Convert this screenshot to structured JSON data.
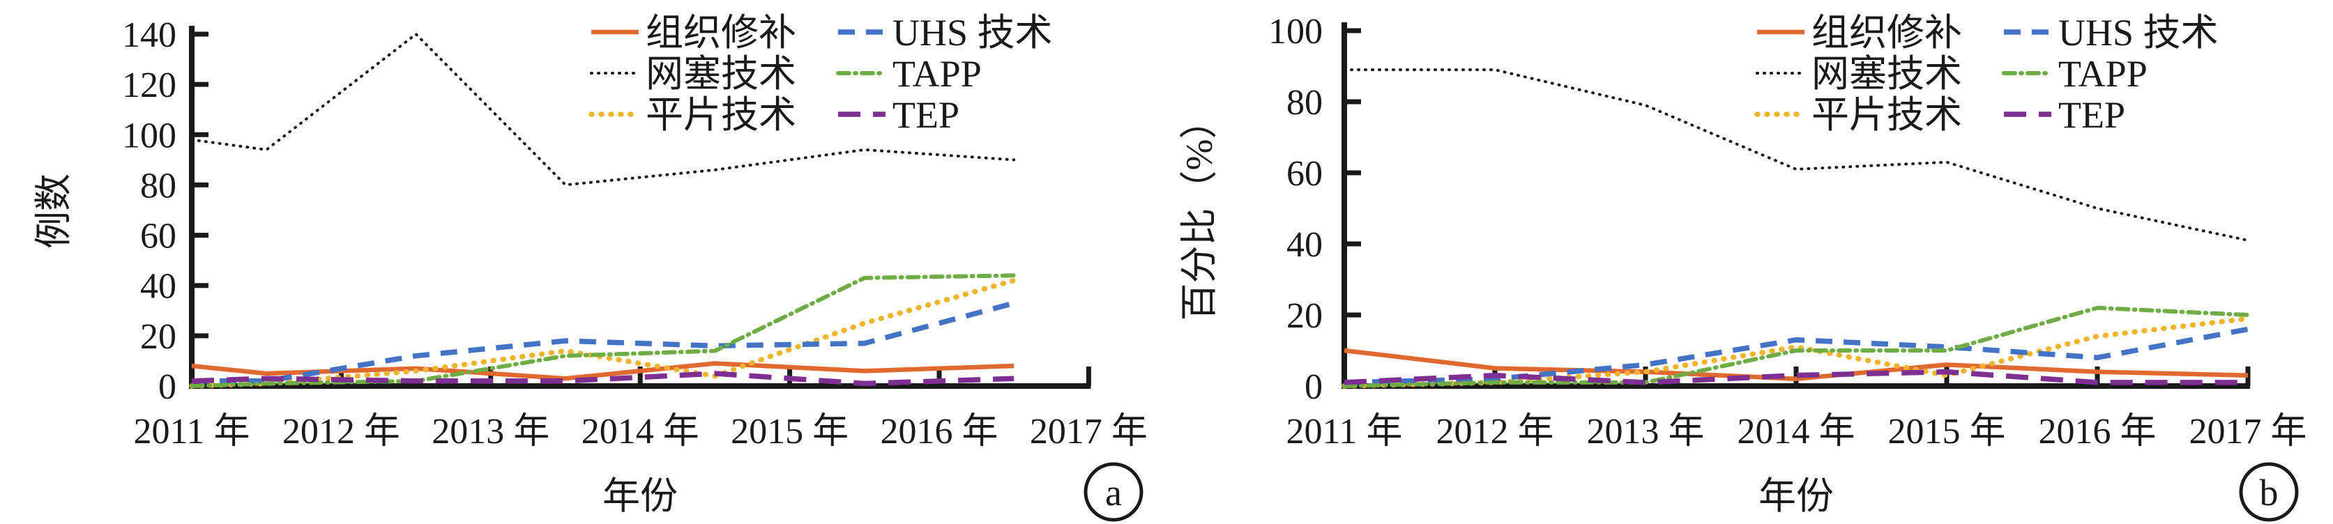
{
  "figure": {
    "background": "#ffffff",
    "axis_color": "#1a1a1a",
    "panel_labels": [
      "a",
      "b"
    ]
  },
  "chart_data": [
    {
      "type": "line",
      "panel": "a",
      "ylabel": "例数",
      "xlabel": "年份",
      "x_tick_labels": [
        "2011 年",
        "2012 年",
        "2013 年",
        "2014 年",
        "2015 年",
        "2016 年",
        "2017 年"
      ],
      "years": [
        2011,
        2012,
        2013,
        2014,
        2015,
        2016,
        2017
      ],
      "x_plot_positions": [
        2011,
        2011.5,
        2012.5,
        2013.5,
        2014.5,
        2015.5,
        2016.5
      ],
      "ylim": [
        0,
        140
      ],
      "yticks": [
        0,
        20,
        40,
        60,
        80,
        100,
        120,
        140
      ],
      "grid": false,
      "legend_position": "top-right-inside",
      "series": [
        {
          "key": "tissue-repair",
          "name": "组织修补",
          "color": "#E0692F",
          "style": "solid",
          "values": [
            8,
            5,
            7,
            3,
            9,
            6,
            8
          ]
        },
        {
          "key": "mesh-plug",
          "name": "网塞技术",
          "color": "#1a1a1a",
          "style": "dot-fine",
          "values": [
            98,
            94,
            140,
            80,
            86,
            94,
            90
          ]
        },
        {
          "key": "flat-mesh",
          "name": "平片技术",
          "color": "#F0B32E",
          "style": "dot-round",
          "values": [
            0,
            1,
            6,
            14,
            4,
            25,
            42
          ]
        },
        {
          "key": "uhs",
          "name": "UHS 技术",
          "color": "#4472C4",
          "style": "dash",
          "values": [
            2,
            2,
            12,
            18,
            16,
            17,
            33
          ]
        },
        {
          "key": "tapp",
          "name": "TAPP",
          "color": "#6FAC46",
          "style": "dash-dot",
          "values": [
            0,
            1,
            2,
            12,
            14,
            43,
            44
          ]
        },
        {
          "key": "tep",
          "name": "TEP",
          "color": "#7D2F92",
          "style": "long-dash",
          "values": [
            2,
            3,
            2,
            2,
            5,
            1,
            3
          ]
        }
      ]
    },
    {
      "type": "line",
      "panel": "b",
      "ylabel": "百分比（%）",
      "xlabel": "年份",
      "x_tick_labels": [
        "2011 年",
        "2012 年",
        "2013 年",
        "2014 年",
        "2015 年",
        "2016 年",
        "2017 年"
      ],
      "years": [
        2011,
        2012,
        2013,
        2014,
        2015,
        2016,
        2017
      ],
      "x_plot_positions": [
        2011,
        2012,
        2013,
        2014,
        2015,
        2016,
        2017
      ],
      "ylim": [
        0,
        100
      ],
      "yticks": [
        0,
        20,
        40,
        60,
        80,
        100
      ],
      "grid": false,
      "legend_position": "top-right-inside",
      "series": [
        {
          "key": "tissue-repair",
          "name": "组织修补",
          "color": "#E0692F",
          "style": "solid",
          "values": [
            10,
            5,
            4,
            2,
            6,
            4,
            3
          ]
        },
        {
          "key": "mesh-plug",
          "name": "网塞技术",
          "color": "#1a1a1a",
          "style": "dot-fine",
          "values": [
            89,
            89,
            79,
            61,
            63,
            50,
            41
          ]
        },
        {
          "key": "flat-mesh",
          "name": "平片技术",
          "color": "#F0B32E",
          "style": "dot-round",
          "values": [
            0,
            1,
            4,
            11,
            3,
            14,
            19
          ]
        },
        {
          "key": "uhs",
          "name": "UHS 技术",
          "color": "#4472C4",
          "style": "dash",
          "values": [
            1,
            2,
            6,
            13,
            11,
            8,
            16
          ]
        },
        {
          "key": "tapp",
          "name": "TAPP",
          "color": "#6FAC46",
          "style": "dash-dot",
          "values": [
            0,
            1,
            1,
            10,
            10,
            22,
            20
          ]
        },
        {
          "key": "tep",
          "name": "TEP",
          "color": "#7D2F92",
          "style": "long-dash",
          "values": [
            1,
            3,
            1,
            3,
            4,
            1,
            1
          ]
        }
      ]
    }
  ]
}
